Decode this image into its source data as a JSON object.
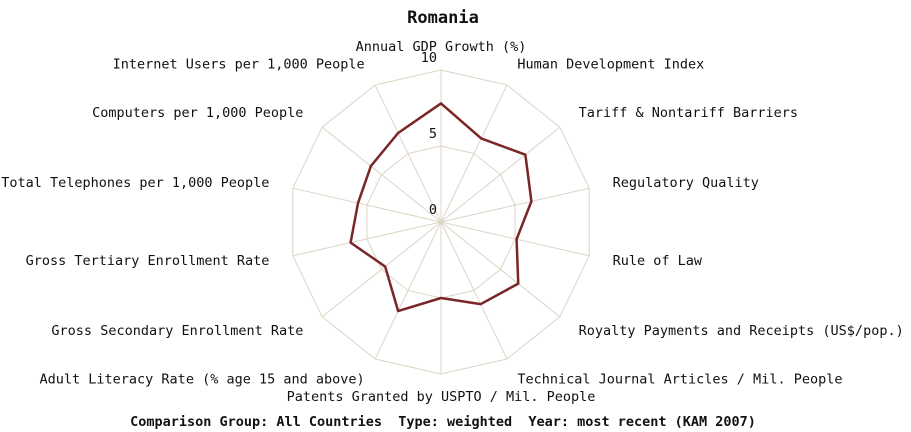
{
  "chart_data": {
    "type": "radar",
    "title": "Romania",
    "categories": [
      "Annual GDP Growth (%)",
      "Human Development Index",
      "Tariff & Nontariff Barriers",
      "Regulatory Quality",
      "Rule of Law",
      "Royalty Payments and Receipts (US$/pop.)",
      "Technical Journal Articles / Mil. People",
      "Patents Granted by USPTO / Mil. People",
      "Adult Literacy Rate (% age 15 and above)",
      "Gross Secondary Enrollment Rate",
      "Gross Tertiary Enrollment Rate",
      "Total Telephones per 1,000 People",
      "Computers per 1,000 People",
      "Internet Users per 1,000 People"
    ],
    "values": [
      7.8,
      6.1,
      7.1,
      6.1,
      5.1,
      6.5,
      6.0,
      5.0,
      6.5,
      4.7,
      6.1,
      5.6,
      5.9,
      6.5
    ],
    "color": "#7a2626",
    "grid_color": "#ddd4c4",
    "ylim": [
      0,
      10
    ],
    "yticks": [
      0,
      5,
      10
    ],
    "grid": true,
    "footer": "Comparison Group: All Countries  Type: weighted  Year: most recent (KAM 2007)"
  }
}
